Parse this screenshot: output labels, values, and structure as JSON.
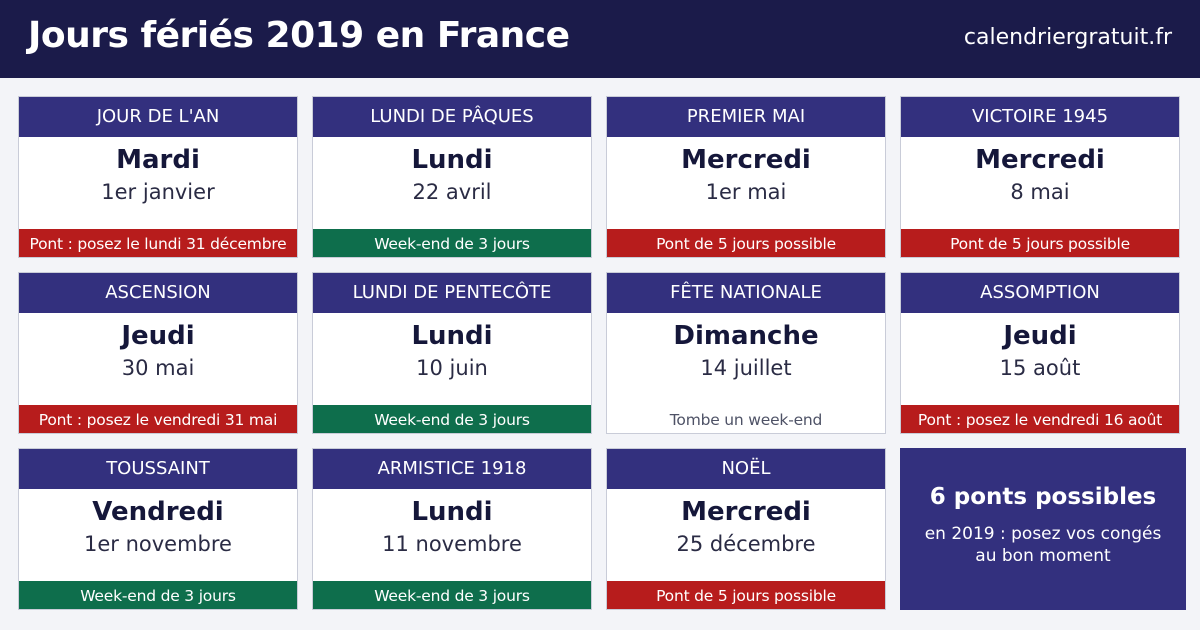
{
  "header": {
    "title": "Jours fériés 2019 en France",
    "site": "calendriergratuit.fr"
  },
  "holidays": [
    {
      "name": "JOUR DE L'AN",
      "day": "Mardi",
      "date": "1er janvier",
      "note": "Pont : posez le lundi 31 décembre",
      "note_type": "bridge"
    },
    {
      "name": "LUNDI DE PÂQUES",
      "day": "Lundi",
      "date": "22 avril",
      "note": "Week-end de 3 jours",
      "note_type": "long-weekend"
    },
    {
      "name": "PREMIER MAI",
      "day": "Mercredi",
      "date": "1er mai",
      "note": "Pont de 5 jours possible",
      "note_type": "bridge"
    },
    {
      "name": "VICTOIRE 1945",
      "day": "Mercredi",
      "date": "8 mai",
      "note": "Pont de 5 jours possible",
      "note_type": "bridge"
    },
    {
      "name": "ASCENSION",
      "day": "Jeudi",
      "date": "30 mai",
      "note": "Pont : posez le vendredi 31 mai",
      "note_type": "bridge"
    },
    {
      "name": "LUNDI DE PENTECÔTE",
      "day": "Lundi",
      "date": "10 juin",
      "note": "Week-end de 3 jours",
      "note_type": "long-weekend"
    },
    {
      "name": "FÊTE NATIONALE",
      "day": "Dimanche",
      "date": "14 juillet",
      "note": "Tombe un week-end",
      "note_type": "weekend"
    },
    {
      "name": "ASSOMPTION",
      "day": "Jeudi",
      "date": "15 août",
      "note": "Pont : posez le vendredi 16 août",
      "note_type": "bridge"
    },
    {
      "name": "TOUSSAINT",
      "day": "Vendredi",
      "date": "1er novembre",
      "note": "Week-end de 3 jours",
      "note_type": "long-weekend"
    },
    {
      "name": "ARMISTICE 1918",
      "day": "Lundi",
      "date": "11 novembre",
      "note": "Week-end de 3 jours",
      "note_type": "long-weekend"
    },
    {
      "name": "NOËL",
      "day": "Mercredi",
      "date": "25 décembre",
      "note": "Pont de 5 jours possible",
      "note_type": "bridge"
    }
  ],
  "summary": {
    "headline": "6 ponts possibles",
    "text": "en 2019 : posez vos congés au bon moment"
  },
  "colors": {
    "header_bg": "#1b1b4a",
    "card_header": "#33307e",
    "bridge": "#b71c1c",
    "long_weekend": "#0e6e4c"
  }
}
